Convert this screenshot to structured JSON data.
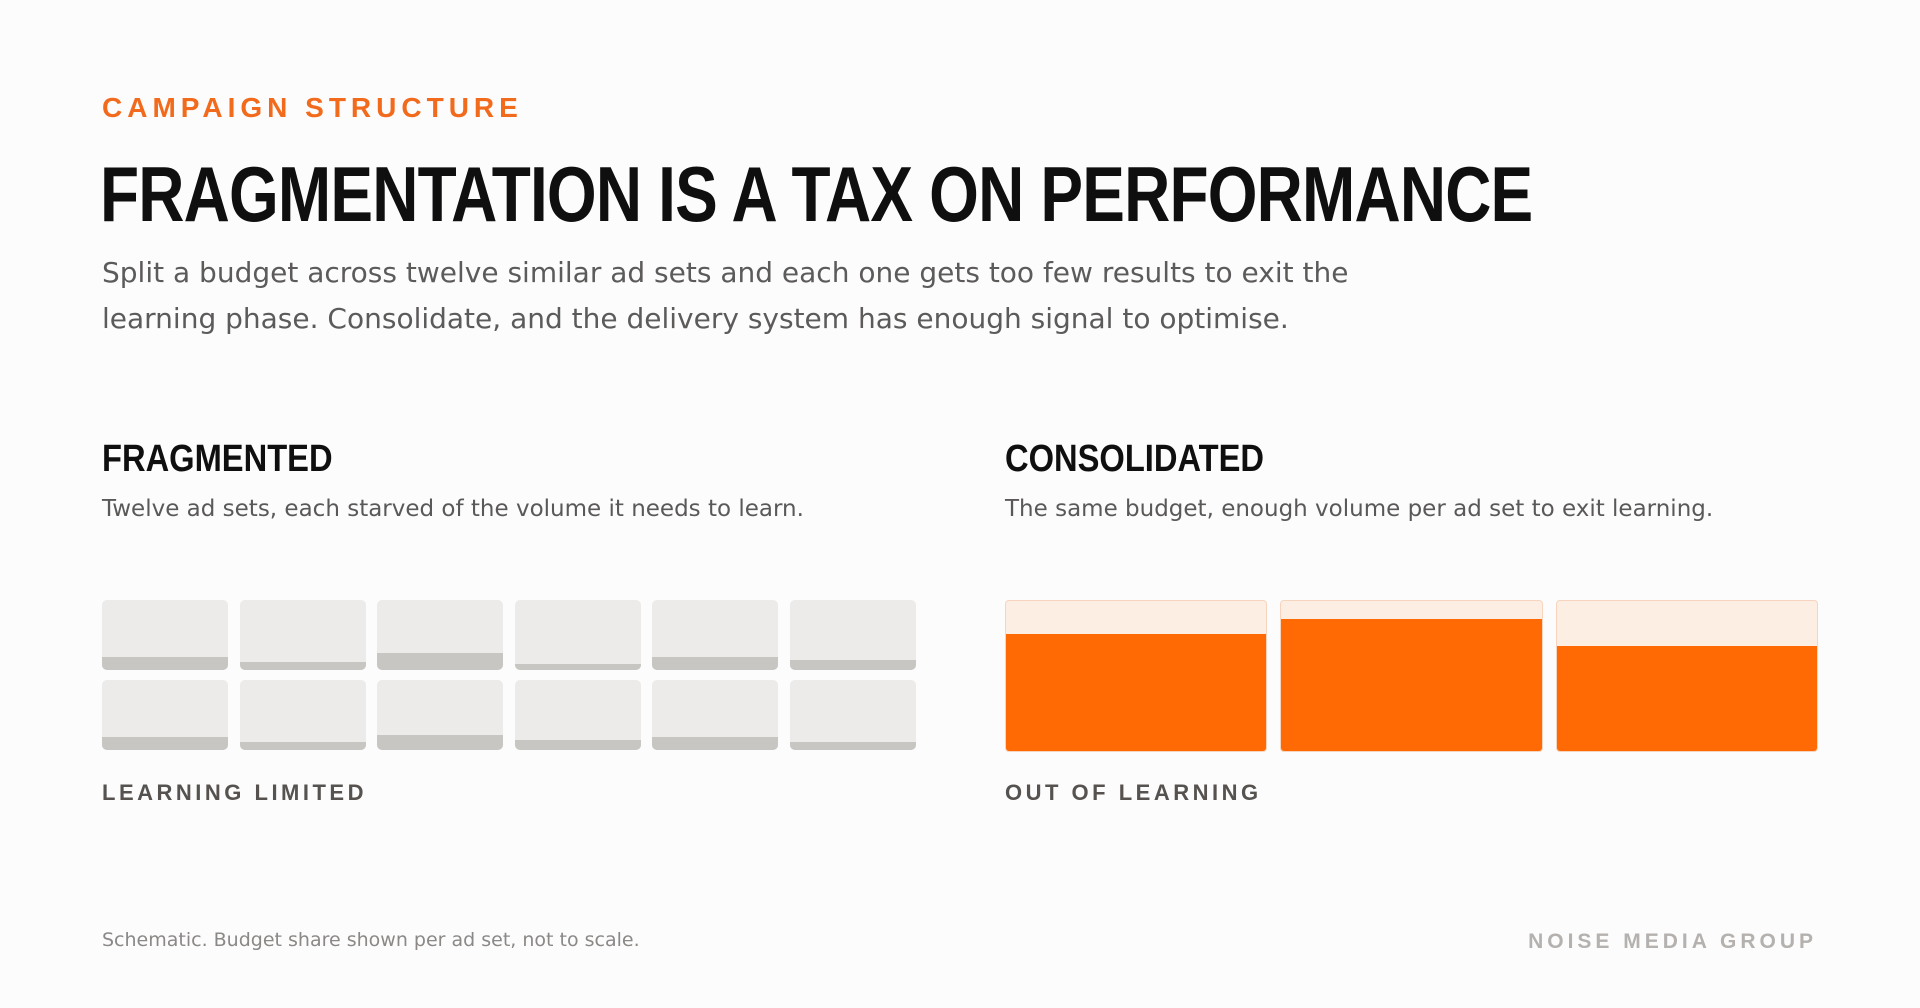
{
  "header": {
    "eyebrow": "CAMPAIGN STRUCTURE",
    "title": "FRAGMENTATION IS A TAX ON PERFORMANCE",
    "lede": "Split a budget across twelve similar ad sets and each one gets too few results to exit the learning phase. Consolidate, and the delivery system has enough signal to optimise."
  },
  "fragmented": {
    "title": "FRAGMENTED",
    "subtitle": "Twelve ad sets, each starved of the volume it needs to learn.",
    "status": "LEARNING LIMITED",
    "fill_color": "#c8c6c3",
    "track_color": "#ecebea",
    "ad_set_fill_levels": [
      0.18,
      0.12,
      0.24,
      0.08,
      0.18,
      0.14,
      0.18,
      0.12,
      0.22,
      0.14,
      0.18,
      0.12
    ]
  },
  "consolidated": {
    "title": "CONSOLIDATED",
    "subtitle": "The same budget, enough volume per ad set to exit learning.",
    "status": "OUT OF LEARNING",
    "fill_color": "#ff6a05",
    "track_color": "#fdeee4",
    "ad_set_fill_levels": [
      0.78,
      0.88,
      0.7
    ]
  },
  "footer": {
    "note": "Schematic. Budget share shown per ad set, not to scale.",
    "brand": "NOISE MEDIA GROUP"
  },
  "colors": {
    "accent": "#f26a1b"
  }
}
